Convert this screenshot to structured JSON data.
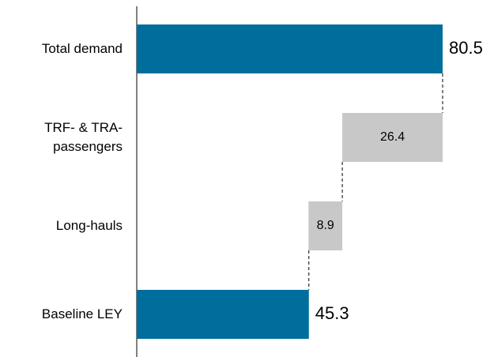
{
  "chart_data": {
    "type": "waterfall",
    "categories": [
      "Total demand",
      "TRF- & TRA-\npassengers",
      "Long-hauls",
      "Baseline LEY"
    ],
    "values": [
      80.5,
      26.4,
      8.9,
      45.3
    ],
    "measures": [
      "total",
      "relative",
      "relative",
      "total"
    ],
    "colors": [
      "#006e9c",
      "#c8c8c8",
      "#c8c8c8",
      "#006e9c"
    ]
  }
}
